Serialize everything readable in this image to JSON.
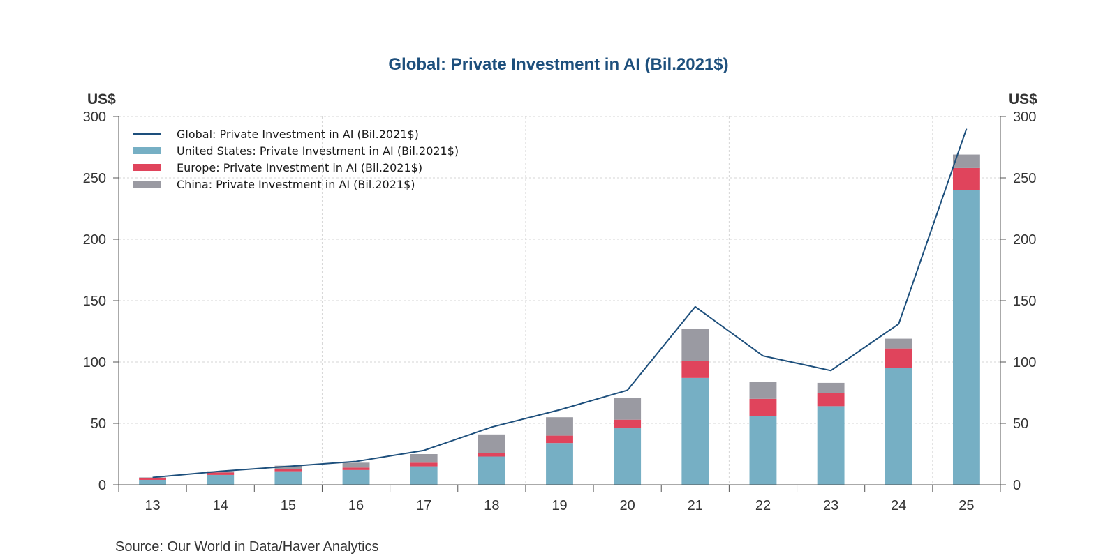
{
  "chart_data": {
    "type": "bar",
    "title": "Global: Private Investment in AI (Bil.2021$)",
    "y_unit_left": "US$",
    "y_unit_right": "US$",
    "ylim": [
      0,
      300
    ],
    "yticks": [
      0,
      50,
      100,
      150,
      200,
      250,
      300
    ],
    "categories": [
      "13",
      "14",
      "15",
      "16",
      "17",
      "18",
      "19",
      "20",
      "21",
      "22",
      "23",
      "24",
      "25"
    ],
    "stacked": true,
    "grid": true,
    "legend_position": "top-left",
    "series": [
      {
        "name": "United States: Private Investment in AI (Bil.2021$)",
        "kind": "bar",
        "color": "#76afc4",
        "values": [
          4,
          8,
          11,
          12,
          15,
          23,
          34,
          46,
          87,
          56,
          64,
          95,
          240
        ]
      },
      {
        "name": "Europe: Private Investment in AI (Bil.2021$)",
        "kind": "bar",
        "color": "#e0445c",
        "values": [
          1.5,
          2,
          1.5,
          2,
          3,
          3,
          6,
          7,
          14,
          14,
          11,
          16,
          18
        ]
      },
      {
        "name": "China: Private Investment in AI (Bil.2021$)",
        "kind": "bar",
        "color": "#9a9aa2",
        "values": [
          0.5,
          1,
          3,
          4,
          7,
          15,
          15,
          18,
          26,
          14,
          8,
          8,
          11
        ]
      },
      {
        "name": "Global: Private Investment in AI (Bil.2021$)",
        "kind": "line",
        "color": "#1d4f7c",
        "values": [
          6,
          11,
          15,
          19,
          28,
          47,
          61,
          77,
          145,
          105,
          93,
          131,
          290
        ]
      }
    ],
    "legend_order": [
      3,
      0,
      1,
      2
    ],
    "source": "Source:  Our World in Data/Haver Analytics"
  }
}
